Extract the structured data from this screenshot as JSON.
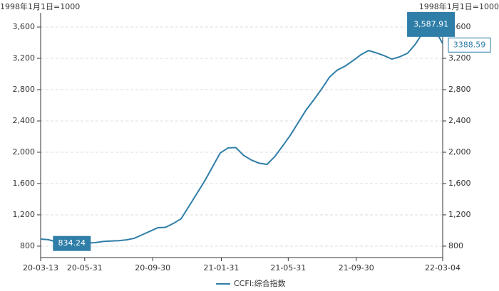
{
  "chart_data": {
    "type": "line",
    "y_axis_label": "1998年1月1日=1000",
    "y2_axis_label": "1998年1月1日=1000",
    "x": [
      "2020-03-13",
      "2020-03-27",
      "2020-04-10",
      "2020-04-24",
      "2020-05-08",
      "2020-05-22",
      "2020-06-05",
      "2020-06-19",
      "2020-07-03",
      "2020-07-17",
      "2020-07-31",
      "2020-08-14",
      "2020-08-28",
      "2020-09-11",
      "2020-09-25",
      "2020-10-09",
      "2020-10-23",
      "2020-11-06",
      "2020-11-20",
      "2020-12-04",
      "2020-12-18",
      "2021-01-01",
      "2021-01-15",
      "2021-01-29",
      "2021-02-12",
      "2021-02-26",
      "2021-03-12",
      "2021-03-26",
      "2021-04-09",
      "2021-04-23",
      "2021-05-07",
      "2021-05-21",
      "2021-06-04",
      "2021-06-18",
      "2021-07-02",
      "2021-07-16",
      "2021-07-30",
      "2021-08-13",
      "2021-08-27",
      "2021-09-10",
      "2021-09-24",
      "2021-10-08",
      "2021-10-22",
      "2021-11-05",
      "2021-11-19",
      "2021-12-03",
      "2021-12-17",
      "2021-12-31",
      "2022-01-14",
      "2022-01-28",
      "2022-02-11",
      "2022-02-25",
      "2022-03-04"
    ],
    "series": [
      {
        "name": "CCFI:综合指数",
        "color": "#2e7ea8",
        "values": [
          890,
          882,
          855,
          845,
          834.24,
          840,
          840,
          845,
          860,
          865,
          870,
          880,
          900,
          945,
          990,
          1035,
          1040,
          1090,
          1150,
          1310,
          1470,
          1630,
          1810,
          1990,
          2055,
          2060,
          1960,
          1900,
          1860,
          1845,
          1945,
          2080,
          2220,
          2380,
          2540,
          2670,
          2810,
          2960,
          3050,
          3100,
          3170,
          3245,
          3300,
          3270,
          3235,
          3190,
          3220,
          3265,
          3380,
          3535,
          3587.91,
          3480,
          3388.59
        ]
      }
    ],
    "xlim": [
      "2020-03-13",
      "2022-03-04"
    ],
    "xticks": [
      {
        "value": "2020-03-13",
        "label": "20-03-13"
      },
      {
        "value": "2020-05-31",
        "label": "20-05-31"
      },
      {
        "value": "2020-09-30",
        "label": "20-09-30"
      },
      {
        "value": "2021-01-31",
        "label": "21-01-31"
      },
      {
        "value": "2021-05-31",
        "label": "21-05-31"
      },
      {
        "value": "2021-09-30",
        "label": "21-09-30"
      },
      {
        "value": "2022-03-04",
        "label": "22-03-04"
      }
    ],
    "ylim": [
      654,
      3782
    ],
    "yticks": [
      800,
      {
        "value": 1200,
        "label": "1,200"
      },
      {
        "value": 1600,
        "label": "1,600"
      },
      {
        "value": 2000,
        "label": "2,000"
      },
      {
        "value": 2400,
        "label": "2,400"
      },
      {
        "value": 2800,
        "label": "2,800"
      },
      {
        "value": 3200,
        "label": "3,200"
      },
      {
        "value": 3600,
        "label": "3,600"
      }
    ],
    "y2lim": [
      654,
      3782
    ],
    "y2ticks": [
      800,
      {
        "value": 1200,
        "label": "1,200"
      },
      {
        "value": 1600,
        "label": "1,600"
      },
      {
        "value": 2000,
        "label": "2,000"
      },
      {
        "value": 2400,
        "label": "2,400"
      },
      {
        "value": 2800,
        "label": "2,800"
      },
      {
        "value": 3200,
        "label": "3,200"
      },
      {
        "value": 3600,
        "label": "3,600"
      }
    ],
    "grid": true,
    "legend": "bottom",
    "annotations": [
      {
        "x": "2022-02-11",
        "value": 3587.91,
        "label": "3,587.91",
        "style": "filled"
      },
      {
        "x": "2022-03-04",
        "value": 3388.59,
        "label": "3388.59",
        "style": "outline"
      },
      {
        "x": "2020-05-08",
        "value": 834.24,
        "label": "834.24",
        "style": "filled"
      }
    ]
  }
}
